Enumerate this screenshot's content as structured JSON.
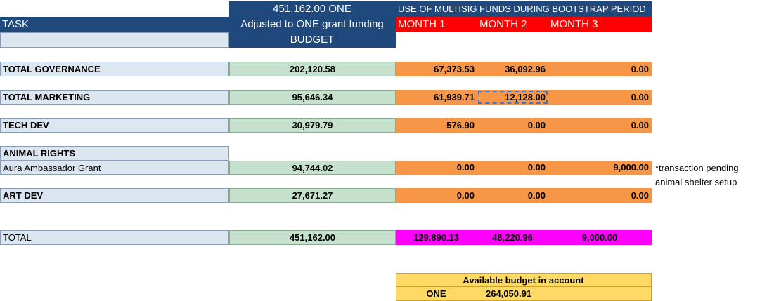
{
  "header": {
    "grant_total": "451,162.00 ONE",
    "multisig_title": "USE OF MULTISIG FUNDS DURING BOOTSTRAP PERIOD",
    "task_label": "TASK",
    "adjusted_label": "Adjusted to ONE grant funding",
    "month1": "MONTH 1",
    "month2": "MONTH 2",
    "month3": "MONTH 3",
    "budget_label": "BUDGET"
  },
  "rows": {
    "governance": {
      "label": "TOTAL GOVERNANCE",
      "budget": "202,120.58",
      "m1": "67,373.53",
      "m2": "36,092.96",
      "m3": "0.00"
    },
    "marketing": {
      "label": "TOTAL  MARKETING",
      "budget": "95,646.34",
      "m1": "61,939.71",
      "m2": "12,128.00",
      "m3": "0.00"
    },
    "techdev": {
      "label": "TECH DEV",
      "budget": "30,979.79",
      "m1": "576.90",
      "m2": "0.00",
      "m3": "0.00"
    },
    "animal": {
      "section_label": "ANIMAL RIGHTS",
      "label": "Aura Ambassador Grant",
      "budget": "94,744.02",
      "m1": "0.00",
      "m2": "0.00",
      "m3": "9,000.00",
      "note1": "*transaction pending",
      "note2": "animal shelter setup"
    },
    "artdev": {
      "label": "ART DEV",
      "budget": "27,671.27",
      "m1": "0.00",
      "m2": "0.00",
      "m3": "0.00"
    },
    "total": {
      "label": "TOTAL",
      "budget": "451,162.00",
      "m1": "129,890.13",
      "m2": "48,220.96",
      "m3": "9,000.00"
    }
  },
  "available": {
    "title": "Available budget in account",
    "currency": "ONE",
    "amount": "264,050.91"
  }
}
